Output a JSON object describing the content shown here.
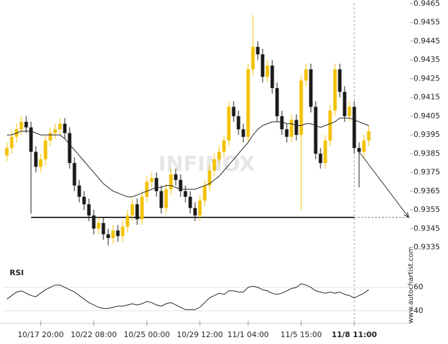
{
  "chart_data": {
    "type": "candlestick",
    "watermark": "INFINOX",
    "site": "www.autochartist.com",
    "rsi_label": "RSI",
    "categories": [
      null,
      null,
      null,
      null,
      null,
      null,
      null,
      "10/17 20:00",
      null,
      null,
      null,
      null,
      null,
      null,
      null,
      null,
      null,
      null,
      "10/22 08:00",
      null,
      null,
      null,
      null,
      null,
      null,
      null,
      null,
      null,
      null,
      "10/25 00:00",
      null,
      null,
      null,
      null,
      null,
      null,
      null,
      null,
      null,
      null,
      "10/29 12:00",
      null,
      null,
      null,
      null,
      null,
      null,
      null,
      null,
      null,
      "11/1 04:00",
      null,
      null,
      null,
      null,
      null,
      null,
      null,
      null,
      null,
      null,
      "11/5 15:00",
      null,
      null,
      null,
      null,
      null,
      null,
      null,
      null,
      null,
      null,
      "11/8 11:00",
      null,
      null,
      null
    ],
    "open": [
      0.9384,
      0.9388,
      0.9394,
      0.9398,
      0.9402,
      0.9399,
      0.9386,
      0.9378,
      0.9382,
      0.9392,
      0.9396,
      0.9398,
      0.9401,
      0.9396,
      0.938,
      0.9368,
      0.9362,
      0.9358,
      0.9352,
      0.9345,
      0.9348,
      0.9342,
      0.934,
      0.9344,
      0.9341,
      0.9346,
      0.9352,
      0.9358,
      0.935,
      0.9362,
      0.937,
      0.9372,
      0.9365,
      0.9356,
      0.9366,
      0.9374,
      0.9371,
      0.9365,
      0.9362,
      0.9356,
      0.9352,
      0.936,
      0.9368,
      0.9376,
      0.9382,
      0.9386,
      0.9392,
      0.941,
      0.9405,
      0.9398,
      0.9394,
      0.943,
      0.9442,
      0.9438,
      0.9426,
      0.9432,
      0.942,
      0.9405,
      0.9398,
      0.9394,
      0.9403,
      0.9395,
      0.9424,
      0.943,
      0.941,
      0.9385,
      0.938,
      0.9392,
      0.9408,
      0.943,
      0.9418,
      0.9405,
      0.941,
      0.9388,
      0.9386,
      0.9392
    ],
    "high": [
      0.9391,
      0.9397,
      0.9401,
      0.9405,
      0.9405,
      0.9402,
      0.9389,
      0.9385,
      0.9395,
      0.9399,
      0.9401,
      0.9404,
      0.9404,
      0.9399,
      0.9383,
      0.9371,
      0.9365,
      0.9361,
      0.9355,
      0.9351,
      0.9351,
      0.9345,
      0.9347,
      0.9347,
      0.9349,
      0.9355,
      0.9361,
      0.9361,
      0.9365,
      0.9373,
      0.9375,
      0.9375,
      0.9368,
      0.9369,
      0.9377,
      0.9377,
      0.9374,
      0.9368,
      0.9365,
      0.9359,
      0.9363,
      0.9371,
      0.9379,
      0.9385,
      0.9389,
      0.9395,
      0.9413,
      0.9413,
      0.9408,
      0.9401,
      0.9433,
      0.9459,
      0.9445,
      0.9441,
      0.9435,
      0.9435,
      0.9423,
      0.9408,
      0.9401,
      0.9406,
      0.9406,
      0.9427,
      0.9433,
      0.9433,
      0.9413,
      0.9388,
      0.9395,
      0.9411,
      0.9433,
      0.9433,
      0.9421,
      0.9413,
      0.9413,
      0.9391,
      0.9395,
      0.94
    ],
    "low": [
      0.9381,
      0.9385,
      0.9391,
      0.9395,
      0.9396,
      0.9353,
      0.9375,
      0.9375,
      0.9379,
      0.9389,
      0.9393,
      0.9395,
      0.9393,
      0.9377,
      0.9365,
      0.9359,
      0.9355,
      0.9349,
      0.9342,
      0.9342,
      0.9339,
      0.9336,
      0.9337,
      0.9338,
      0.9338,
      0.9343,
      0.9349,
      0.9347,
      0.9347,
      0.9359,
      0.9367,
      0.9362,
      0.9353,
      0.9353,
      0.9363,
      0.9368,
      0.9362,
      0.9359,
      0.9353,
      0.9349,
      0.9349,
      0.9357,
      0.9365,
      0.9373,
      0.9379,
      0.9383,
      0.9389,
      0.9402,
      0.9395,
      0.9391,
      0.9391,
      0.9427,
      0.9435,
      0.9423,
      0.9423,
      0.9417,
      0.9402,
      0.9395,
      0.9391,
      0.9391,
      0.9392,
      0.9355,
      0.9421,
      0.9407,
      0.9382,
      0.9377,
      0.9377,
      0.9389,
      0.9405,
      0.9415,
      0.9402,
      0.9402,
      0.9385,
      0.9367,
      0.9383,
      0.9389
    ],
    "close": [
      0.9388,
      0.9394,
      0.9398,
      0.9402,
      0.9399,
      0.9386,
      0.9378,
      0.9382,
      0.9392,
      0.9396,
      0.9398,
      0.9401,
      0.9396,
      0.938,
      0.9368,
      0.9362,
      0.9358,
      0.9352,
      0.9345,
      0.9348,
      0.9342,
      0.934,
      0.9344,
      0.9341,
      0.9346,
      0.9352,
      0.9358,
      0.935,
      0.9362,
      0.937,
      0.9372,
      0.9365,
      0.9356,
      0.9366,
      0.9374,
      0.9371,
      0.9365,
      0.9362,
      0.9356,
      0.9352,
      0.936,
      0.9368,
      0.9376,
      0.9382,
      0.9386,
      0.9392,
      0.941,
      0.9405,
      0.9398,
      0.9394,
      0.943,
      0.9442,
      0.9438,
      0.9426,
      0.9432,
      0.942,
      0.9405,
      0.9398,
      0.9394,
      0.9403,
      0.9395,
      0.9424,
      0.943,
      0.941,
      0.9385,
      0.938,
      0.9392,
      0.9408,
      0.943,
      0.9418,
      0.9405,
      0.941,
      0.9388,
      0.9386,
      0.9392,
      0.9397
    ],
    "ma": [
      0.9395,
      0.9395,
      0.9396,
      0.9397,
      0.9397,
      0.9397,
      0.9396,
      0.9395,
      0.9395,
      0.9395,
      0.9395,
      0.9395,
      0.9393,
      0.939,
      0.9387,
      0.9384,
      0.9381,
      0.9378,
      0.9375,
      0.9372,
      0.9369,
      0.9367,
      0.9365,
      0.9364,
      0.9363,
      0.9362,
      0.9362,
      0.9363,
      0.9364,
      0.9365,
      0.9366,
      0.9367,
      0.9367,
      0.9368,
      0.9368,
      0.9367,
      0.9366,
      0.9366,
      0.9366,
      0.9366,
      0.9367,
      0.9368,
      0.9369,
      0.9371,
      0.9373,
      0.9376,
      0.9379,
      0.9382,
      0.9385,
      0.9388,
      0.9391,
      0.9395,
      0.9398,
      0.94,
      0.9401,
      0.9402,
      0.9402,
      0.9402,
      0.9401,
      0.9401,
      0.94,
      0.94,
      0.9401,
      0.9401,
      0.94,
      0.9399,
      0.94,
      0.9401,
      0.9402,
      0.9404,
      0.9404,
      0.9404,
      0.9403,
      0.9402,
      0.9401,
      0.94
    ],
    "rsi": [
      50,
      53,
      56,
      57,
      55,
      53,
      52,
      55,
      58,
      60,
      62,
      62,
      60,
      58,
      56,
      53,
      50,
      47,
      45,
      43,
      42,
      42,
      43,
      44,
      44,
      45,
      46,
      45,
      46,
      48,
      47,
      45,
      44,
      46,
      47,
      45,
      43,
      41,
      41,
      41,
      43,
      47,
      51,
      53,
      55,
      54,
      57,
      57,
      56,
      56,
      60,
      61,
      60,
      58,
      57,
      55,
      54,
      55,
      57,
      59,
      60,
      63,
      62,
      60,
      57,
      56,
      55,
      56,
      55,
      56,
      54,
      53,
      51,
      53,
      55,
      58
    ],
    "support": 0.9351,
    "up_color": "#f2c200",
    "down_color": "#1a1a1a",
    "ylim": [
      0.9333,
      0.9467
    ],
    "yticks": [
      0.9335,
      0.9345,
      0.9355,
      0.9365,
      0.9375,
      0.9385,
      0.9395,
      0.9405,
      0.9415,
      0.9425,
      0.9435,
      0.9445,
      0.9455,
      0.9465
    ],
    "rsi_ylim": [
      34,
      68
    ],
    "rsi_yticks": [
      40,
      60
    ]
  }
}
